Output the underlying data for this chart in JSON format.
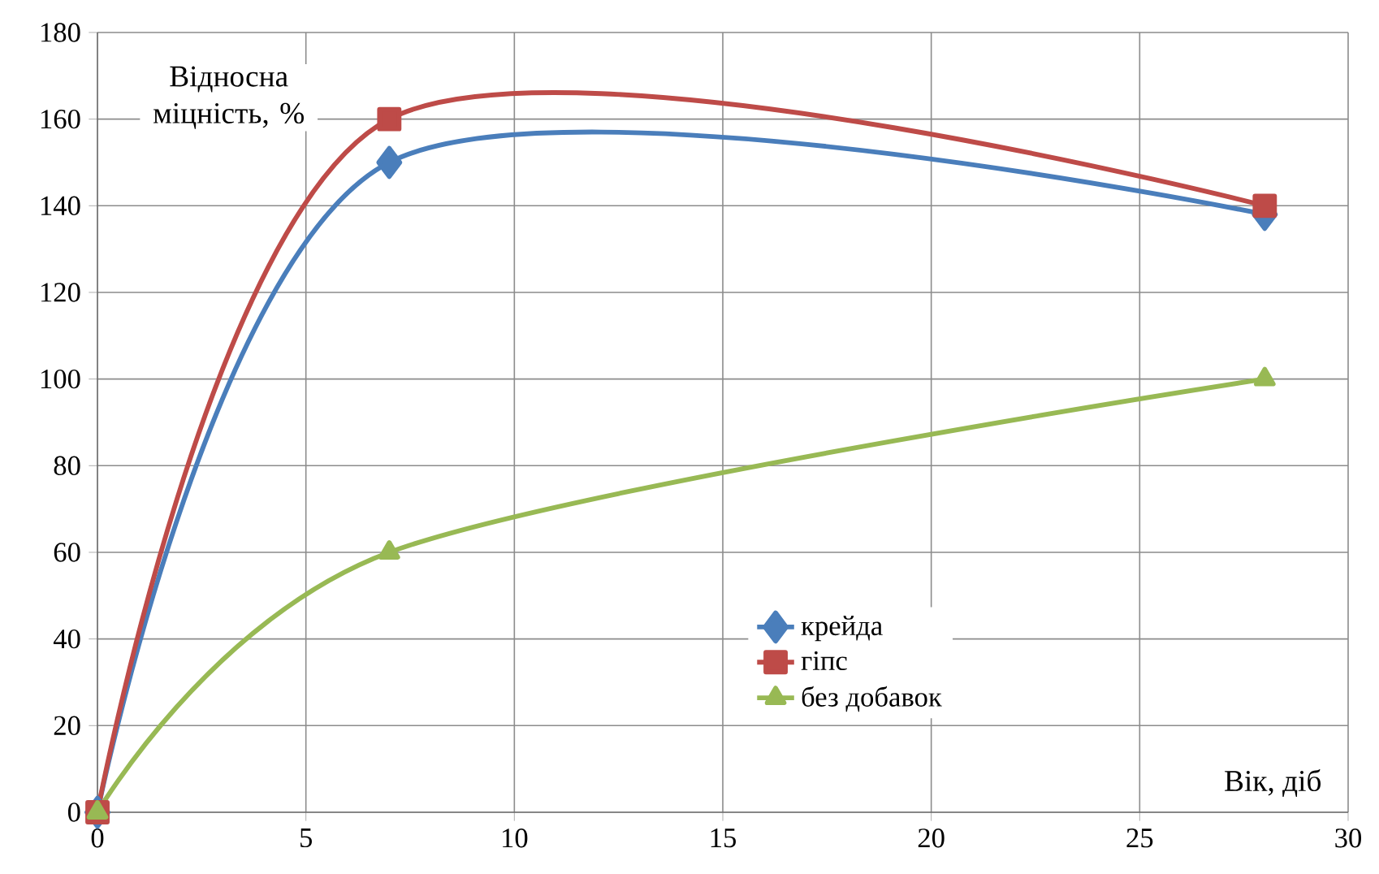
{
  "chart_data": {
    "type": "line",
    "xlabel": "Вік, діб",
    "ylabel": "Відносна міцність, %",
    "xlim": [
      0,
      30
    ],
    "xticks": [
      0,
      5,
      10,
      15,
      20,
      25,
      30
    ],
    "ylim": [
      0,
      180
    ],
    "yticks": [
      0,
      20,
      40,
      60,
      80,
      100,
      120,
      140,
      160,
      180
    ],
    "grid": true,
    "legend": "bottom right",
    "series": [
      {
        "name": "крейда",
        "color": "#4a7ebb",
        "x": [
          0,
          7,
          28
        ],
        "values": [
          0,
          150,
          138
        ],
        "marker": "diamond"
      },
      {
        "name": "гіпс",
        "color": "#be4b48",
        "x": [
          0,
          7,
          28
        ],
        "values": [
          0,
          160,
          140
        ],
        "marker": "square"
      },
      {
        "name": "без добавок",
        "color": "#98b954",
        "x": [
          0,
          7,
          28
        ],
        "values": [
          0,
          60,
          100
        ],
        "marker": "triangle"
      }
    ]
  }
}
